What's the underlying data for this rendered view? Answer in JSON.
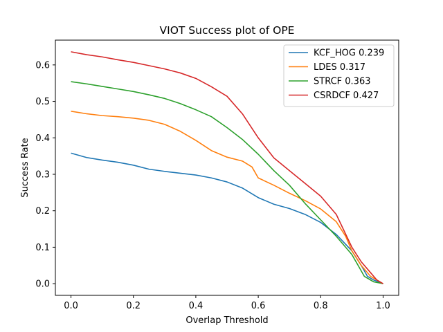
{
  "chart_data": {
    "type": "line",
    "title": "VIOT Success plot of OPE",
    "xlabel": "Overlap Threshold",
    "ylabel": "Success Rate",
    "xlim": [
      -0.05,
      1.05
    ],
    "ylim": [
      -0.032,
      0.668
    ],
    "xticks": [
      0.0,
      0.2,
      0.4,
      0.6,
      0.8,
      1.0
    ],
    "xtick_labels": [
      "0.0",
      "0.2",
      "0.4",
      "0.6",
      "0.8",
      "1.0"
    ],
    "yticks": [
      0.0,
      0.1,
      0.2,
      0.3,
      0.4,
      0.5,
      0.6
    ],
    "ytick_labels": [
      "0.0",
      "0.1",
      "0.2",
      "0.3",
      "0.4",
      "0.5",
      "0.6"
    ],
    "grid": false,
    "legend_position": "top-right",
    "series": [
      {
        "name": "KCF_HOG 0.239",
        "color": "#1f77b4",
        "points": [
          [
            0.0,
            0.358
          ],
          [
            0.05,
            0.346
          ],
          [
            0.1,
            0.339
          ],
          [
            0.15,
            0.333
          ],
          [
            0.2,
            0.325
          ],
          [
            0.25,
            0.314
          ],
          [
            0.3,
            0.308
          ],
          [
            0.35,
            0.303
          ],
          [
            0.4,
            0.298
          ],
          [
            0.45,
            0.29
          ],
          [
            0.5,
            0.279
          ],
          [
            0.55,
            0.262
          ],
          [
            0.6,
            0.236
          ],
          [
            0.65,
            0.218
          ],
          [
            0.7,
            0.206
          ],
          [
            0.75,
            0.19
          ],
          [
            0.8,
            0.168
          ],
          [
            0.85,
            0.135
          ],
          [
            0.9,
            0.09
          ],
          [
            0.93,
            0.05
          ],
          [
            0.95,
            0.02
          ],
          [
            0.97,
            0.01
          ],
          [
            1.0,
            0.0
          ]
        ]
      },
      {
        "name": "LDES 0.317",
        "color": "#ff7f0e",
        "points": [
          [
            0.0,
            0.473
          ],
          [
            0.05,
            0.466
          ],
          [
            0.1,
            0.461
          ],
          [
            0.15,
            0.458
          ],
          [
            0.2,
            0.454
          ],
          [
            0.25,
            0.448
          ],
          [
            0.3,
            0.437
          ],
          [
            0.35,
            0.418
          ],
          [
            0.4,
            0.393
          ],
          [
            0.45,
            0.365
          ],
          [
            0.5,
            0.347
          ],
          [
            0.55,
            0.336
          ],
          [
            0.58,
            0.32
          ],
          [
            0.6,
            0.29
          ],
          [
            0.65,
            0.27
          ],
          [
            0.7,
            0.248
          ],
          [
            0.75,
            0.228
          ],
          [
            0.8,
            0.205
          ],
          [
            0.85,
            0.17
          ],
          [
            0.88,
            0.13
          ],
          [
            0.9,
            0.09
          ],
          [
            0.93,
            0.05
          ],
          [
            0.96,
            0.02
          ],
          [
            1.0,
            0.0
          ]
        ]
      },
      {
        "name": "STRCF 0.363",
        "color": "#2ca02c",
        "points": [
          [
            0.0,
            0.554
          ],
          [
            0.05,
            0.548
          ],
          [
            0.1,
            0.541
          ],
          [
            0.15,
            0.534
          ],
          [
            0.2,
            0.527
          ],
          [
            0.25,
            0.518
          ],
          [
            0.3,
            0.508
          ],
          [
            0.35,
            0.494
          ],
          [
            0.4,
            0.477
          ],
          [
            0.45,
            0.458
          ],
          [
            0.5,
            0.428
          ],
          [
            0.55,
            0.395
          ],
          [
            0.6,
            0.355
          ],
          [
            0.65,
            0.31
          ],
          [
            0.7,
            0.27
          ],
          [
            0.75,
            0.22
          ],
          [
            0.8,
            0.175
          ],
          [
            0.85,
            0.13
          ],
          [
            0.9,
            0.08
          ],
          [
            0.92,
            0.05
          ],
          [
            0.94,
            0.02
          ],
          [
            0.97,
            0.005
          ],
          [
            1.0,
            0.0
          ]
        ]
      },
      {
        "name": "CSRDCF 0.427",
        "color": "#d62728",
        "points": [
          [
            0.0,
            0.636
          ],
          [
            0.05,
            0.628
          ],
          [
            0.1,
            0.622
          ],
          [
            0.15,
            0.614
          ],
          [
            0.2,
            0.607
          ],
          [
            0.25,
            0.598
          ],
          [
            0.3,
            0.589
          ],
          [
            0.35,
            0.578
          ],
          [
            0.4,
            0.563
          ],
          [
            0.45,
            0.54
          ],
          [
            0.5,
            0.514
          ],
          [
            0.55,
            0.465
          ],
          [
            0.6,
            0.4
          ],
          [
            0.65,
            0.345
          ],
          [
            0.7,
            0.31
          ],
          [
            0.75,
            0.275
          ],
          [
            0.8,
            0.24
          ],
          [
            0.85,
            0.19
          ],
          [
            0.9,
            0.1
          ],
          [
            0.93,
            0.06
          ],
          [
            0.96,
            0.03
          ],
          [
            0.98,
            0.01
          ],
          [
            1.0,
            0.0
          ]
        ]
      }
    ]
  }
}
